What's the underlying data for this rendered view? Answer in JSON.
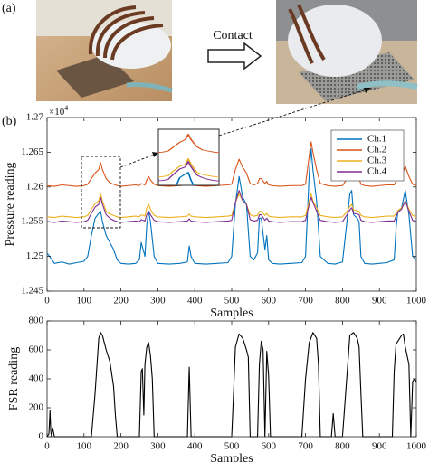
{
  "panel_a_label": "(a)",
  "panel_b_label": "(b)",
  "arrow_label": "Contact",
  "chart_data": [
    {
      "type": "line",
      "x_label": "Samples",
      "y_label": "Pressure reading",
      "y_multiplier": "×10",
      "y_multiplier_exponent": "4",
      "xlim": [
        0,
        1000
      ],
      "xticks": [
        0,
        100,
        200,
        300,
        400,
        500,
        600,
        700,
        800,
        900,
        1000
      ],
      "ylim": [
        1.245,
        1.27
      ],
      "yticks": [
        1.245,
        1.25,
        1.255,
        1.26,
        1.265,
        1.27
      ],
      "grid": false,
      "legend": "upper right",
      "x": [
        0,
        20,
        40,
        60,
        80,
        100,
        110,
        120,
        130,
        140,
        145,
        150,
        160,
        170,
        180,
        190,
        200,
        220,
        240,
        250,
        255,
        260,
        265,
        270,
        275,
        280,
        290,
        300,
        330,
        360,
        380,
        385,
        390,
        400,
        430,
        460,
        490,
        500,
        510,
        520,
        530,
        540,
        550,
        560,
        570,
        575,
        580,
        590,
        595,
        600,
        610,
        630,
        660,
        690,
        700,
        710,
        715,
        720,
        730,
        740,
        760,
        780,
        800,
        810,
        820,
        825,
        830,
        840,
        845,
        850,
        860,
        880,
        900,
        920,
        940,
        945,
        950,
        960,
        970,
        980,
        990,
        1000
      ],
      "series": [
        {
          "name": "Ch.1",
          "color": "#0072bd",
          "values": [
            1.2505,
            1.249,
            1.2492,
            1.2489,
            1.2491,
            1.2493,
            1.25,
            1.253,
            1.2555,
            1.2562,
            1.2565,
            1.255,
            1.253,
            1.252,
            1.251,
            1.2495,
            1.249,
            1.2489,
            1.249,
            1.2495,
            1.252,
            1.251,
            1.25,
            1.2545,
            1.2565,
            1.255,
            1.25,
            1.249,
            1.2489,
            1.249,
            1.2492,
            1.2515,
            1.25,
            1.249,
            1.2489,
            1.249,
            1.2491,
            1.25,
            1.2575,
            1.2615,
            1.2585,
            1.2575,
            1.25,
            1.2495,
            1.2505,
            1.2555,
            1.2555,
            1.251,
            1.253,
            1.2495,
            1.249,
            1.2489,
            1.249,
            1.2491,
            1.25,
            1.262,
            1.2655,
            1.2625,
            1.258,
            1.25,
            1.249,
            1.2489,
            1.2492,
            1.254,
            1.259,
            1.2595,
            1.256,
            1.2555,
            1.255,
            1.25,
            1.249,
            1.2489,
            1.249,
            1.2491,
            1.2495,
            1.254,
            1.2565,
            1.257,
            1.2595,
            1.256,
            1.25,
            1.2495
          ]
        },
        {
          "name": "Ch.2",
          "color": "#d95319",
          "values": [
            1.2602,
            1.2601,
            1.2603,
            1.2602,
            1.2601,
            1.2602,
            1.2604,
            1.2612,
            1.262,
            1.2625,
            1.2635,
            1.2625,
            1.2612,
            1.2606,
            1.2604,
            1.2602,
            1.2601,
            1.2602,
            1.2603,
            1.2602,
            1.2605,
            1.2604,
            1.2603,
            1.261,
            1.2615,
            1.261,
            1.2604,
            1.2602,
            1.2601,
            1.2602,
            1.2603,
            1.2606,
            1.2603,
            1.2602,
            1.2601,
            1.2602,
            1.2603,
            1.2604,
            1.2625,
            1.264,
            1.2628,
            1.262,
            1.2605,
            1.2603,
            1.2605,
            1.2612,
            1.2612,
            1.2605,
            1.2608,
            1.2603,
            1.2602,
            1.2601,
            1.2602,
            1.2602,
            1.2604,
            1.2645,
            1.2665,
            1.265,
            1.2625,
            1.2605,
            1.2602,
            1.2601,
            1.2602,
            1.261,
            1.262,
            1.2625,
            1.2615,
            1.2613,
            1.2612,
            1.2604,
            1.2602,
            1.2601,
            1.2602,
            1.2603,
            1.2603,
            1.2608,
            1.2612,
            1.2615,
            1.263,
            1.2615,
            1.2604,
            1.2602
          ]
        },
        {
          "name": "Ch.3",
          "color": "#edb120",
          "values": [
            1.2557,
            1.2556,
            1.2558,
            1.2557,
            1.2556,
            1.2557,
            1.2559,
            1.2568,
            1.2576,
            1.258,
            1.259,
            1.258,
            1.2565,
            1.2561,
            1.2559,
            1.2557,
            1.2556,
            1.2557,
            1.2558,
            1.2557,
            1.256,
            1.2559,
            1.2558,
            1.257,
            1.2575,
            1.2568,
            1.2559,
            1.2557,
            1.2556,
            1.2557,
            1.2558,
            1.2561,
            1.2558,
            1.2557,
            1.2556,
            1.2557,
            1.2558,
            1.2559,
            1.2578,
            1.259,
            1.258,
            1.2575,
            1.256,
            1.2558,
            1.2559,
            1.2565,
            1.2565,
            1.2559,
            1.2562,
            1.2558,
            1.2557,
            1.2556,
            1.2557,
            1.2557,
            1.2559,
            1.258,
            1.259,
            1.258,
            1.257,
            1.2559,
            1.2557,
            1.2556,
            1.2557,
            1.2563,
            1.2572,
            1.2575,
            1.2567,
            1.2566,
            1.2565,
            1.2559,
            1.2557,
            1.2556,
            1.2557,
            1.2558,
            1.2558,
            1.2562,
            1.2566,
            1.257,
            1.258,
            1.2568,
            1.2559,
            1.2557
          ]
        },
        {
          "name": "Ch.4",
          "color": "#7e2f8e",
          "values": [
            1.255,
            1.2549,
            1.2551,
            1.255,
            1.2549,
            1.255,
            1.2552,
            1.2562,
            1.2571,
            1.2575,
            1.2585,
            1.2575,
            1.256,
            1.2555,
            1.2552,
            1.255,
            1.2549,
            1.255,
            1.2551,
            1.255,
            1.2553,
            1.2552,
            1.2551,
            1.256,
            1.2565,
            1.256,
            1.2552,
            1.255,
            1.2549,
            1.255,
            1.2551,
            1.2554,
            1.2551,
            1.255,
            1.2549,
            1.255,
            1.2551,
            1.2552,
            1.2578,
            1.2595,
            1.258,
            1.2575,
            1.2553,
            1.2551,
            1.2552,
            1.256,
            1.256,
            1.2552,
            1.2555,
            1.2551,
            1.255,
            1.2549,
            1.255,
            1.255,
            1.2552,
            1.2575,
            1.2585,
            1.2578,
            1.2565,
            1.2552,
            1.255,
            1.2549,
            1.255,
            1.2558,
            1.2567,
            1.257,
            1.2562,
            1.2561,
            1.256,
            1.2552,
            1.255,
            1.2549,
            1.255,
            1.2551,
            1.2551,
            1.2558,
            1.2563,
            1.2568,
            1.258,
            1.2565,
            1.2552,
            1.255
          ]
        }
      ]
    },
    {
      "type": "line",
      "x_label": "Samples",
      "y_label": "FSR reading",
      "xlim": [
        0,
        1000
      ],
      "xticks": [
        0,
        100,
        200,
        300,
        400,
        500,
        600,
        700,
        800,
        900,
        1000
      ],
      "ylim": [
        0,
        800
      ],
      "yticks": [
        0,
        200,
        400,
        600,
        800
      ],
      "grid": false,
      "color": "#000000",
      "x": [
        0,
        5,
        8,
        10,
        12,
        15,
        20,
        60,
        100,
        120,
        130,
        140,
        145,
        150,
        160,
        170,
        180,
        185,
        190,
        200,
        240,
        250,
        255,
        258,
        262,
        265,
        270,
        275,
        280,
        285,
        290,
        300,
        370,
        380,
        385,
        390,
        400,
        490,
        500,
        505,
        510,
        520,
        530,
        540,
        545,
        550,
        560,
        570,
        575,
        580,
        585,
        590,
        595,
        600,
        605,
        610,
        680,
        690,
        700,
        710,
        720,
        730,
        735,
        740,
        760,
        770,
        775,
        780,
        790,
        800,
        810,
        820,
        830,
        840,
        845,
        850,
        855,
        860,
        930,
        935,
        940,
        945,
        950,
        960,
        965,
        970,
        980,
        985,
        990,
        995,
        1000
      ],
      "values": [
        0,
        20,
        180,
        40,
        0,
        60,
        0,
        0,
        0,
        0,
        300,
        680,
        720,
        700,
        600,
        520,
        350,
        150,
        0,
        0,
        0,
        0,
        450,
        470,
        150,
        500,
        620,
        650,
        560,
        400,
        0,
        0,
        0,
        0,
        480,
        0,
        0,
        0,
        0,
        300,
        620,
        710,
        680,
        600,
        550,
        0,
        0,
        0,
        500,
        660,
        600,
        0,
        590,
        420,
        0,
        0,
        0,
        0,
        400,
        650,
        720,
        680,
        500,
        0,
        0,
        0,
        160,
        0,
        0,
        0,
        350,
        700,
        720,
        680,
        620,
        300,
        0,
        0,
        0,
        0,
        450,
        640,
        660,
        700,
        710,
        620,
        500,
        0,
        380,
        400,
        380
      ]
    }
  ]
}
